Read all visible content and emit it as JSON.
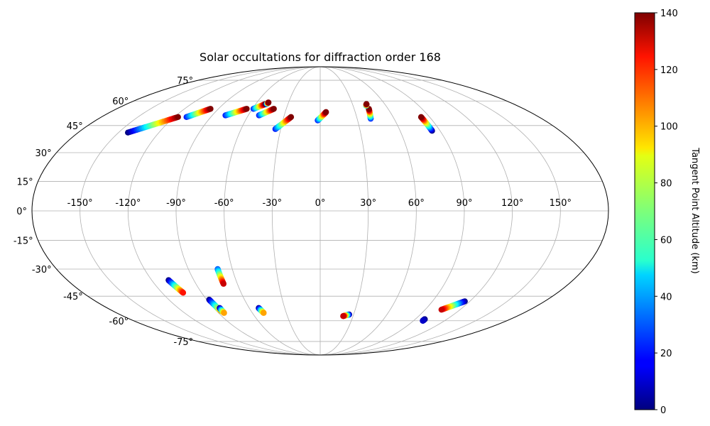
{
  "chart_data": {
    "type": "scatter",
    "projection": "mollweide",
    "title": "Solar occultations for diffraction order 168",
    "xlabel": "",
    "ylabel": "",
    "grid": true,
    "lon_tick_labels": [
      "-150°",
      "-120°",
      "-90°",
      "-60°",
      "-30°",
      "0°",
      "30°",
      "60°",
      "90°",
      "120°",
      "150°"
    ],
    "lat_tick_labels": [
      "-75°",
      "-60°",
      "-45°",
      "-30°",
      "-15°",
      "0°",
      "15°",
      "30°",
      "45°",
      "60°",
      "75°"
    ],
    "colorbar": {
      "label": "Tangent Point Altitude (km)",
      "colormap": "jet",
      "range": [
        0,
        140
      ],
      "tick_labels": [
        "0",
        "20",
        "40",
        "60",
        "80",
        "100",
        "120",
        "140"
      ]
    },
    "tracks": [
      {
        "lon_start": -143,
        "lat_start": 41,
        "lon_end": -117,
        "lat_end": 50,
        "alt_start": 0,
        "alt_end": 140
      },
      {
        "lon_start": -110,
        "lat_start": 50,
        "lon_end": -97,
        "lat_end": 55,
        "alt_start": 20,
        "alt_end": 140
      },
      {
        "lon_start": -79,
        "lat_start": 51,
        "lon_end": -65,
        "lat_end": 55,
        "alt_start": 20,
        "alt_end": 140
      },
      {
        "lon_start": -59,
        "lat_start": 55,
        "lon_end": -51,
        "lat_end": 58,
        "alt_start": 20,
        "alt_end": 140
      },
      {
        "lon_start": -50,
        "lat_start": 58,
        "lon_end": -49,
        "lat_end": 59,
        "alt_start": 0,
        "alt_end": 140
      },
      {
        "lon_start": -51,
        "lat_start": 51,
        "lon_end": -41,
        "lat_end": 55,
        "alt_start": 20,
        "alt_end": 140
      },
      {
        "lon_start": -34,
        "lat_start": 43,
        "lon_end": -24,
        "lat_end": 50,
        "alt_start": 20,
        "alt_end": 140
      },
      {
        "lon_start": -2,
        "lat_start": 48,
        "lon_end": 5,
        "lat_end": 53,
        "alt_start": 20,
        "alt_end": 140
      },
      {
        "lon_start": 41,
        "lat_start": 49,
        "lon_end": 43,
        "lat_end": 55,
        "alt_start": 20,
        "alt_end": 140
      },
      {
        "lon_start": 42,
        "lat_start": 57,
        "lon_end": 43,
        "lat_end": 58,
        "alt_start": 40,
        "alt_end": 140
      },
      {
        "lon_start": 84,
        "lat_start": 42,
        "lon_end": 83,
        "lat_end": 50,
        "alt_start": 0,
        "alt_end": 140
      },
      {
        "lon_start": -108,
        "lat_start": -36,
        "lon_end": -104,
        "lat_end": -43,
        "alt_start": 0,
        "alt_end": 120
      },
      {
        "lon_start": -88,
        "lat_start": -47,
        "lon_end": -86,
        "lat_end": -54,
        "alt_start": 0,
        "alt_end": 100
      },
      {
        "lon_start": -85,
        "lat_start": -52,
        "lon_end": -85,
        "lat_end": -55,
        "alt_start": 0,
        "alt_end": 100
      },
      {
        "lon_start": -70,
        "lat_start": -30,
        "lon_end": -70,
        "lat_end": -38,
        "alt_start": 30,
        "alt_end": 130
      },
      {
        "lon_start": -52,
        "lat_start": -52,
        "lon_end": -50,
        "lat_end": -55,
        "alt_start": 0,
        "alt_end": 100
      },
      {
        "lon_start": 26,
        "lat_start": -56,
        "lon_end": 21,
        "lat_end": -57,
        "alt_start": 0,
        "alt_end": 130
      },
      {
        "lon_start": 116,
        "lat_start": -48,
        "lon_end": 104,
        "lat_end": -53,
        "alt_start": 0,
        "alt_end": 130
      },
      {
        "lon_start": 99,
        "lat_start": -59,
        "lon_end": 99,
        "lat_end": -60,
        "alt_start": 0,
        "alt_end": 10
      }
    ]
  }
}
